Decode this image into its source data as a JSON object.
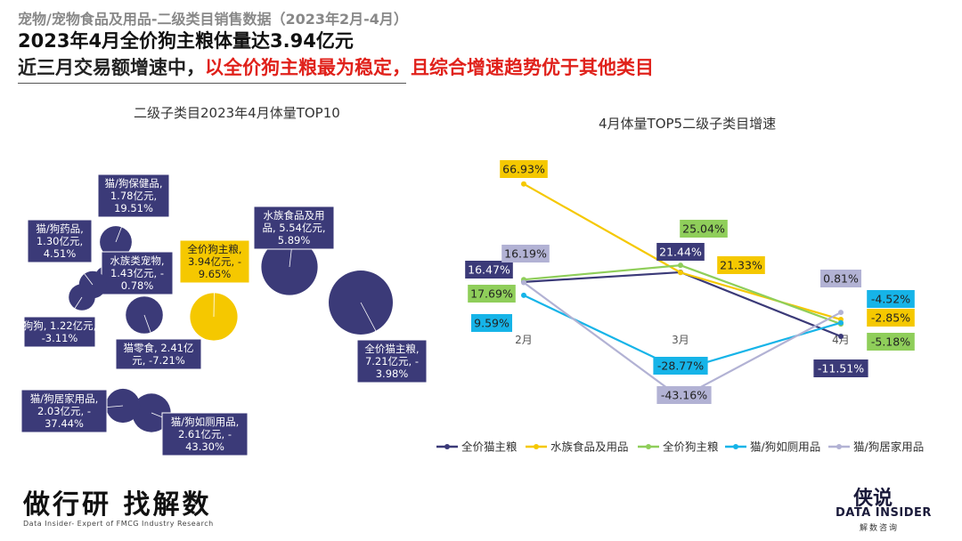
{
  "header": {
    "subtitle": "宠物/宠物食品及用品-二级类目销售数据（2023年2月-4月）",
    "title_line1": "2023年4月全价狗主粮体量达3.94亿元",
    "title_line2_black": "近三月交易额增速中，",
    "title_line2_red": "以全价狗主粮最为稳定，且综合增速趋势优于其他类目"
  },
  "footer": {
    "slogan": "做行研 找解数",
    "tagline": "Data Insider- Expert of FMCG Industry Research",
    "logo_text": "DATA INSIDER",
    "logo_sub": "解数咨询",
    "logo_mark": "侠说"
  },
  "colors": {
    "navy": "#3b3a78",
    "yellow": "#f5c800",
    "green": "#8fce5a",
    "cyan": "#16b4e8",
    "lavender": "#b2b2d4"
  },
  "chart_data": [
    {
      "type": "bubble",
      "title": "二级子类目2023年4月体量TOP10",
      "bubbles": [
        {
          "label": "全价猫主粮,\n7.21亿元, -\n3.98%",
          "volume": 7.21,
          "growth": -3.98,
          "color": "#3b3a78"
        },
        {
          "label": "水族食品及用\n品, 5.54亿元,\n5.89%",
          "volume": 5.54,
          "growth": 5.89,
          "color": "#3b3a78"
        },
        {
          "label": "全价狗主粮,\n3.94亿元, -\n9.65%",
          "volume": 3.94,
          "growth": -9.65,
          "color": "#f5c800"
        },
        {
          "label": "猫/狗如厕用品,\n2.61亿元, -\n43.30%",
          "volume": 2.61,
          "growth": -43.3,
          "color": "#3b3a78"
        },
        {
          "label": "猫零食, 2.41亿\n元, -7.21%",
          "volume": 2.41,
          "growth": -7.21,
          "color": "#3b3a78"
        },
        {
          "label": "猫/狗居家用品,\n2.03亿元, -\n37.44%",
          "volume": 2.03,
          "growth": -37.44,
          "color": "#3b3a78"
        },
        {
          "label": "猫/狗保健品,\n1.78亿元,\n19.51%",
          "volume": 1.78,
          "growth": 19.51,
          "color": "#3b3a78"
        },
        {
          "label": "水族类宠物,\n1.43亿元, -\n0.78%",
          "volume": 1.43,
          "growth": -0.78,
          "color": "#3b3a78"
        },
        {
          "label": "猫/狗药品,\n1.30亿元,\n4.51%",
          "volume": 1.3,
          "growth": 4.51,
          "color": "#3b3a78"
        },
        {
          "label": "狗狗, 1.22亿元,\n-3.11%",
          "volume": 1.22,
          "growth": -3.11,
          "color": "#3b3a78"
        }
      ]
    },
    {
      "type": "line",
      "title": "4月体量TOP5二级子类目增速",
      "categories": [
        "2月",
        "3月",
        "4月"
      ],
      "series": [
        {
          "name": "全价猫主粮",
          "color": "#3b3a78",
          "values": [
            16.47,
            21.44,
            -11.51
          ],
          "labels": [
            "16.47%",
            "21.44%",
            "-11.51%"
          ]
        },
        {
          "name": "水族食品及用品",
          "color": "#f5c800",
          "values": [
            66.93,
            21.33,
            -2.85
          ],
          "labels": [
            "66.93%",
            "21.33%",
            "-2.85%"
          ]
        },
        {
          "name": "全价狗主粮",
          "color": "#8fce5a",
          "values": [
            17.69,
            25.04,
            -5.18
          ],
          "labels": [
            "17.69%",
            "25.04%",
            "-5.18%"
          ]
        },
        {
          "name": "猫/狗如厕用品",
          "color": "#16b4e8",
          "values": [
            9.59,
            -28.77,
            -4.52
          ],
          "labels": [
            "9.59%",
            "-28.77%",
            "-4.52%"
          ]
        },
        {
          "name": "猫/狗居家用品",
          "color": "#b2b2d4",
          "values": [
            16.19,
            -43.16,
            0.81
          ],
          "labels": [
            "16.19%",
            "-43.16%",
            "0.81%"
          ]
        }
      ]
    }
  ]
}
